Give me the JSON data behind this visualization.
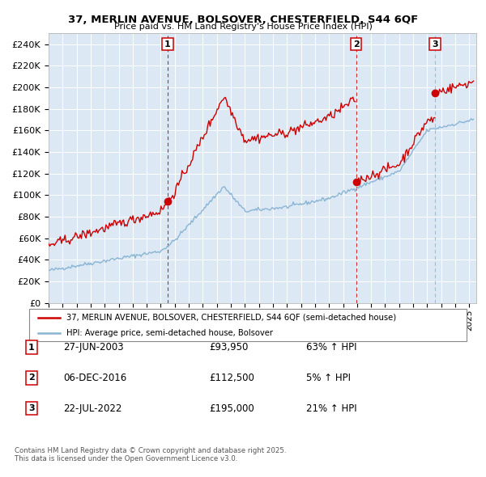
{
  "title1": "37, MERLIN AVENUE, BOLSOVER, CHESTERFIELD, S44 6QF",
  "title2": "Price paid vs. HM Land Registry's House Price Index (HPI)",
  "bg_color": "#dce9f5",
  "red_color": "#cc0000",
  "blue_color": "#8ab4d4",
  "marker_color": "#cc0000",
  "ylim": [
    0,
    250000
  ],
  "yticks": [
    0,
    20000,
    40000,
    60000,
    80000,
    100000,
    120000,
    140000,
    160000,
    180000,
    200000,
    220000,
    240000
  ],
  "legend_line1": "37, MERLIN AVENUE, BOLSOVER, CHESTERFIELD, S44 6QF (semi-detached house)",
  "legend_line2": "HPI: Average price, semi-detached house, Bolsover",
  "annotation1_num": "1",
  "annotation1_date": "27-JUN-2003",
  "annotation1_price": "£93,950",
  "annotation1_pct": "63% ↑ HPI",
  "annotation2_num": "2",
  "annotation2_date": "06-DEC-2016",
  "annotation2_price": "£112,500",
  "annotation2_pct": "5% ↑ HPI",
  "annotation3_num": "3",
  "annotation3_date": "22-JUL-2022",
  "annotation3_price": "£195,000",
  "annotation3_pct": "21% ↑ HPI",
  "footnote1": "Contains HM Land Registry data © Crown copyright and database right 2025.",
  "footnote2": "This data is licensed under the Open Government Licence v3.0.",
  "sale1_year": 2003.49,
  "sale1_price": 93950,
  "sale2_year": 2016.93,
  "sale2_price": 112500,
  "sale3_year": 2022.55,
  "sale3_price": 195000
}
